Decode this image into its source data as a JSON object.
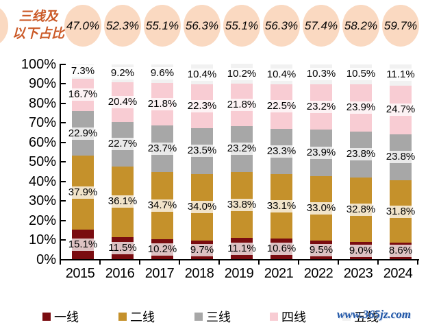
{
  "header": {
    "title_line1": "三线及",
    "title_line2": "以下占比",
    "values": [
      "47.0%",
      "52.3%",
      "55.1%",
      "56.3%",
      "55.1%",
      "56.3%",
      "57.4%",
      "58.2%",
      "59.7%"
    ],
    "bubble_color": "#FAD9C1",
    "title_color": "#CB5A28"
  },
  "chart_data": {
    "type": "bar",
    "stacked": true,
    "categories": [
      "2015",
      "2016",
      "2017",
      "2018",
      "2019",
      "2021",
      "2022",
      "2023",
      "2024"
    ],
    "series": [
      {
        "key": "tier-1",
        "name": "一线",
        "color": "#7A0C10",
        "values": [
          15.1,
          11.5,
          10.2,
          9.7,
          11.1,
          10.6,
          9.5,
          9.0,
          8.6
        ]
      },
      {
        "key": "tier-2",
        "name": "二线",
        "color": "#C5912B",
        "values": [
          37.9,
          36.1,
          34.7,
          34.0,
          33.8,
          33.1,
          33.0,
          32.8,
          31.8
        ]
      },
      {
        "key": "tier-3",
        "name": "三线",
        "color": "#A7A7A7",
        "values": [
          22.9,
          22.7,
          23.7,
          23.5,
          23.2,
          23.3,
          23.9,
          23.8,
          23.8
        ]
      },
      {
        "key": "tier-4",
        "name": "四线",
        "color": "#F8CCD3",
        "values": [
          16.7,
          20.4,
          21.8,
          22.3,
          21.8,
          22.5,
          23.2,
          23.9,
          24.7
        ]
      },
      {
        "key": "tier-5",
        "name": "五线",
        "color": "#F1F1F1",
        "values": [
          7.3,
          9.2,
          9.6,
          10.4,
          10.2,
          10.4,
          10.3,
          10.5,
          11.1
        ]
      }
    ],
    "annotation_series": {
      "name": "三线及以下占比",
      "values": [
        47.0,
        52.3,
        55.1,
        56.3,
        55.1,
        56.3,
        57.4,
        58.2,
        59.7
      ]
    },
    "ylim": [
      0,
      100
    ],
    "yticks": [
      "0%",
      "10%",
      "20%",
      "30%",
      "40%",
      "50%",
      "60%",
      "70%",
      "80%",
      "90%",
      "100%"
    ],
    "grid": false,
    "legend_position": "bottom",
    "value_suffix": "%"
  },
  "watermark": {
    "text": "www.365jz.com",
    "color": "#1F55A6"
  }
}
